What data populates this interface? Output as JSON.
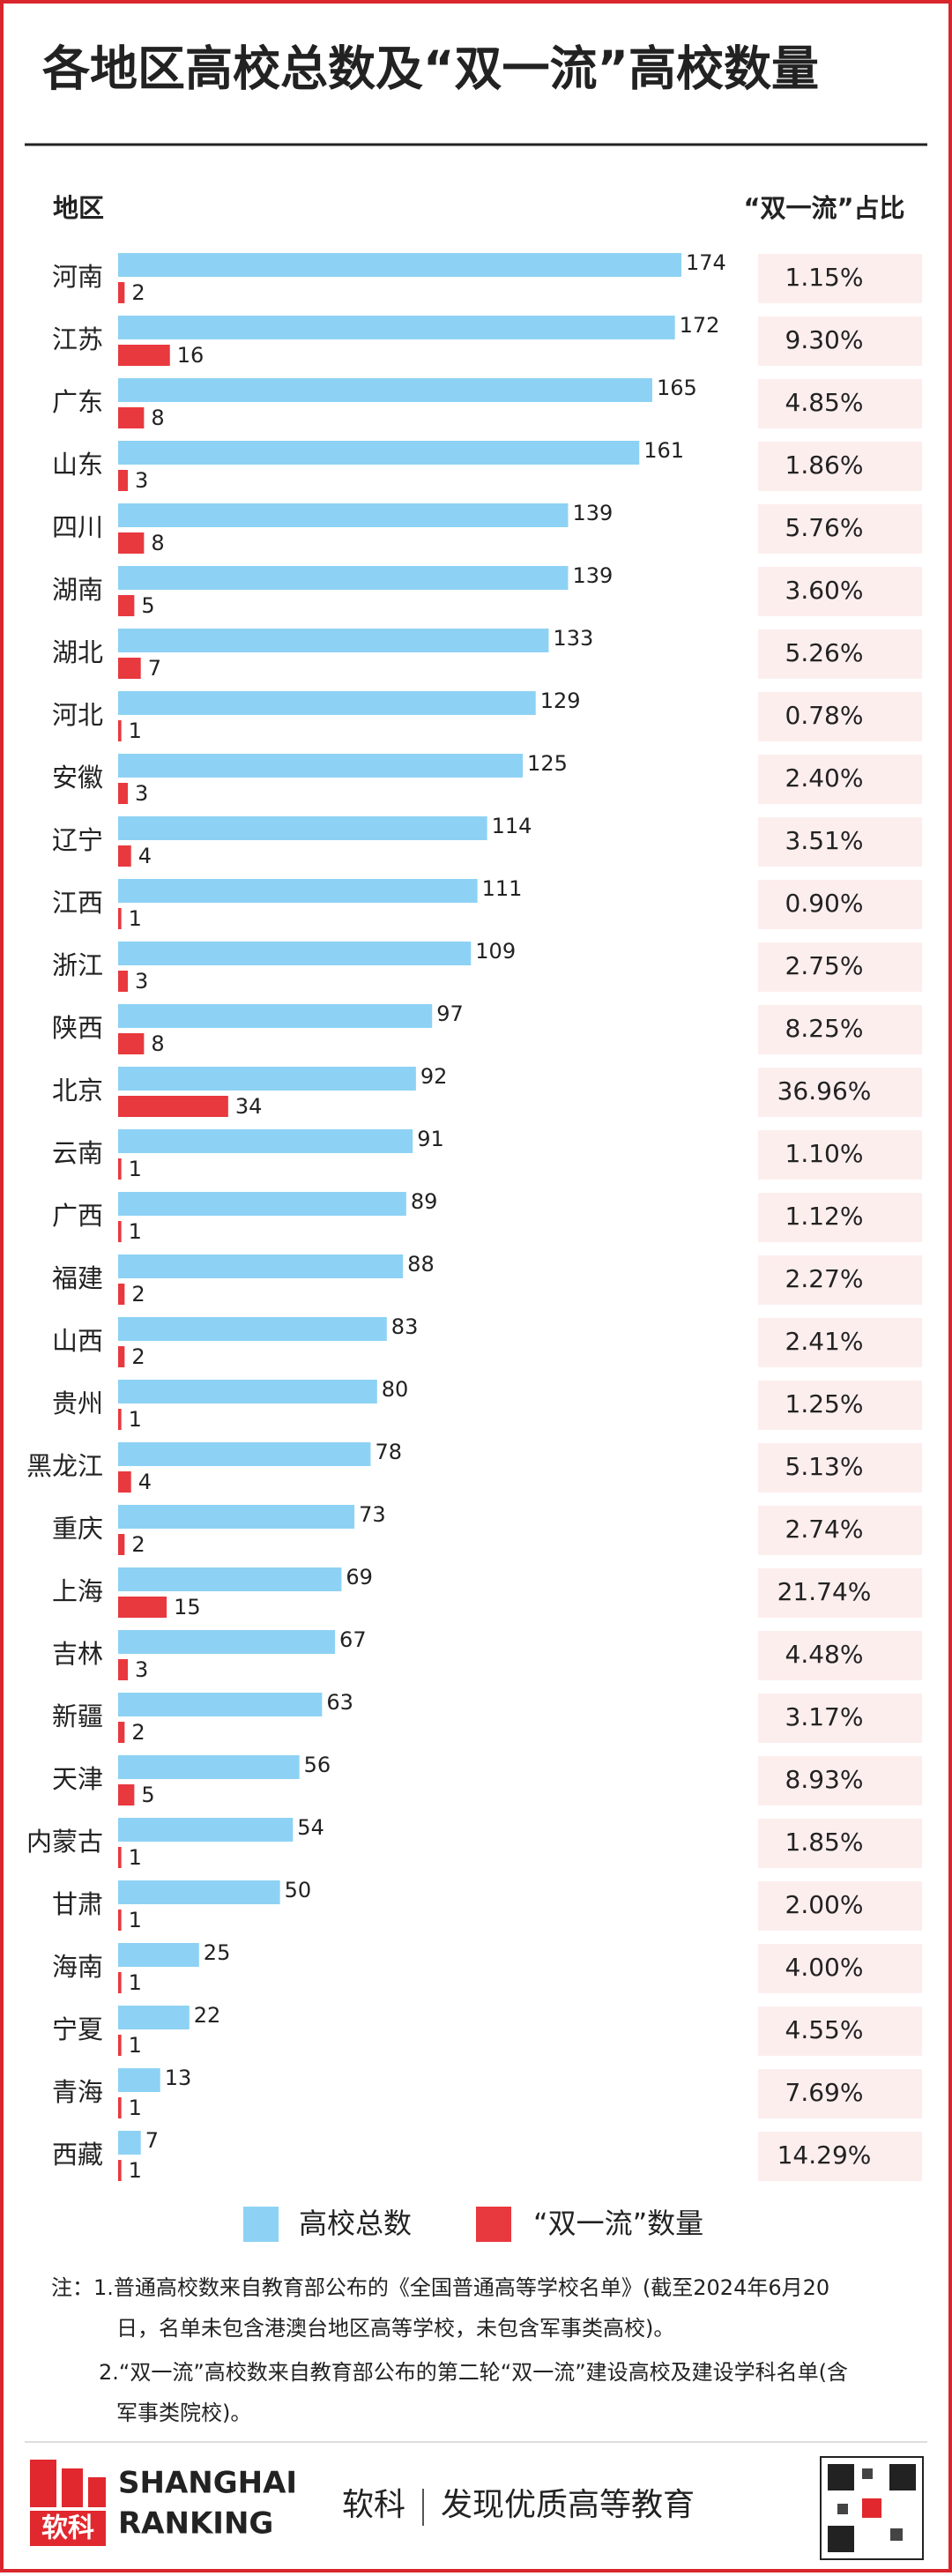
{
  "chart_data": {
    "type": "bar",
    "orientation": "horizontal",
    "title": "各地区高校总数及“双一流”高校数量",
    "category_header": "地区",
    "categories": [
      "河南",
      "江苏",
      "广东",
      "山东",
      "四川",
      "湖南",
      "湖北",
      "河北",
      "安徽",
      "辽宁",
      "江西",
      "浙江",
      "陕西",
      "北京",
      "云南",
      "广西",
      "福建",
      "山西",
      "贵州",
      "黑龙江",
      "重庆",
      "上海",
      "吉林",
      "新疆",
      "天津",
      "内蒙古",
      "甘肃",
      "海南",
      "宁夏",
      "青海",
      "西藏"
    ],
    "series": [
      {
        "name": "高校总数",
        "color": "#8dd2f4",
        "values": [
          174,
          172,
          165,
          161,
          139,
          139,
          133,
          129,
          125,
          114,
          111,
          109,
          97,
          92,
          91,
          89,
          88,
          83,
          80,
          78,
          73,
          69,
          67,
          63,
          56,
          54,
          50,
          25,
          22,
          13,
          7
        ]
      },
      {
        "name": "“双一流”数量",
        "color": "#e8393e",
        "values": [
          2,
          16,
          8,
          3,
          8,
          5,
          7,
          1,
          3,
          4,
          1,
          3,
          8,
          34,
          1,
          1,
          2,
          2,
          1,
          4,
          2,
          15,
          3,
          2,
          5,
          1,
          1,
          1,
          1,
          1,
          1
        ]
      }
    ],
    "share": {
      "name": "“双一流”占比",
      "color": "#fdeeee",
      "values": [
        1.15,
        9.3,
        4.85,
        1.86,
        5.76,
        3.6,
        5.26,
        0.78,
        2.4,
        3.51,
        0.9,
        2.75,
        8.25,
        36.96,
        1.1,
        1.12,
        2.27,
        2.41,
        1.25,
        5.13,
        2.74,
        21.74,
        4.48,
        3.17,
        8.93,
        1.85,
        2,
        4,
        4.55,
        7.69,
        14.29
      ],
      "value_labels": [
        "1.15%",
        "9.30%",
        "4.85%",
        "1.86%",
        "5.76%",
        "3.60%",
        "5.26%",
        "0.78%",
        "2.40%",
        "3.51%",
        "0.90%",
        "2.75%",
        "8.25%",
        "36.96%",
        "1.10%",
        "1.12%",
        "2.27%",
        "2.41%",
        "1.25%",
        "5.13%",
        "2.74%",
        "21.74%",
        "4.48%",
        "3.17%",
        "8.93%",
        "1.85%",
        "2.00%",
        "4.00%",
        "4.55%",
        "7.69%",
        "14.29%"
      ]
    },
    "notes": [
      "注：1.普通高校数来自教育部公布的《全国普通高等学校名单》(截至2024年6月20",
      "日，名单未包含港澳台地区高等学校，未包含军事类高校)。",
      "2.“双一流”高校数来自教育部公布的第二轮“双一流”建设高校及建设学科名单(含",
      "军事类院校)。"
    ]
  },
  "footer": {
    "logo_mark": "软科",
    "logo_line1": "SHANGHAI",
    "logo_line2": "RANKING",
    "brand": "软科",
    "slogan": "发现优质高等教育"
  }
}
